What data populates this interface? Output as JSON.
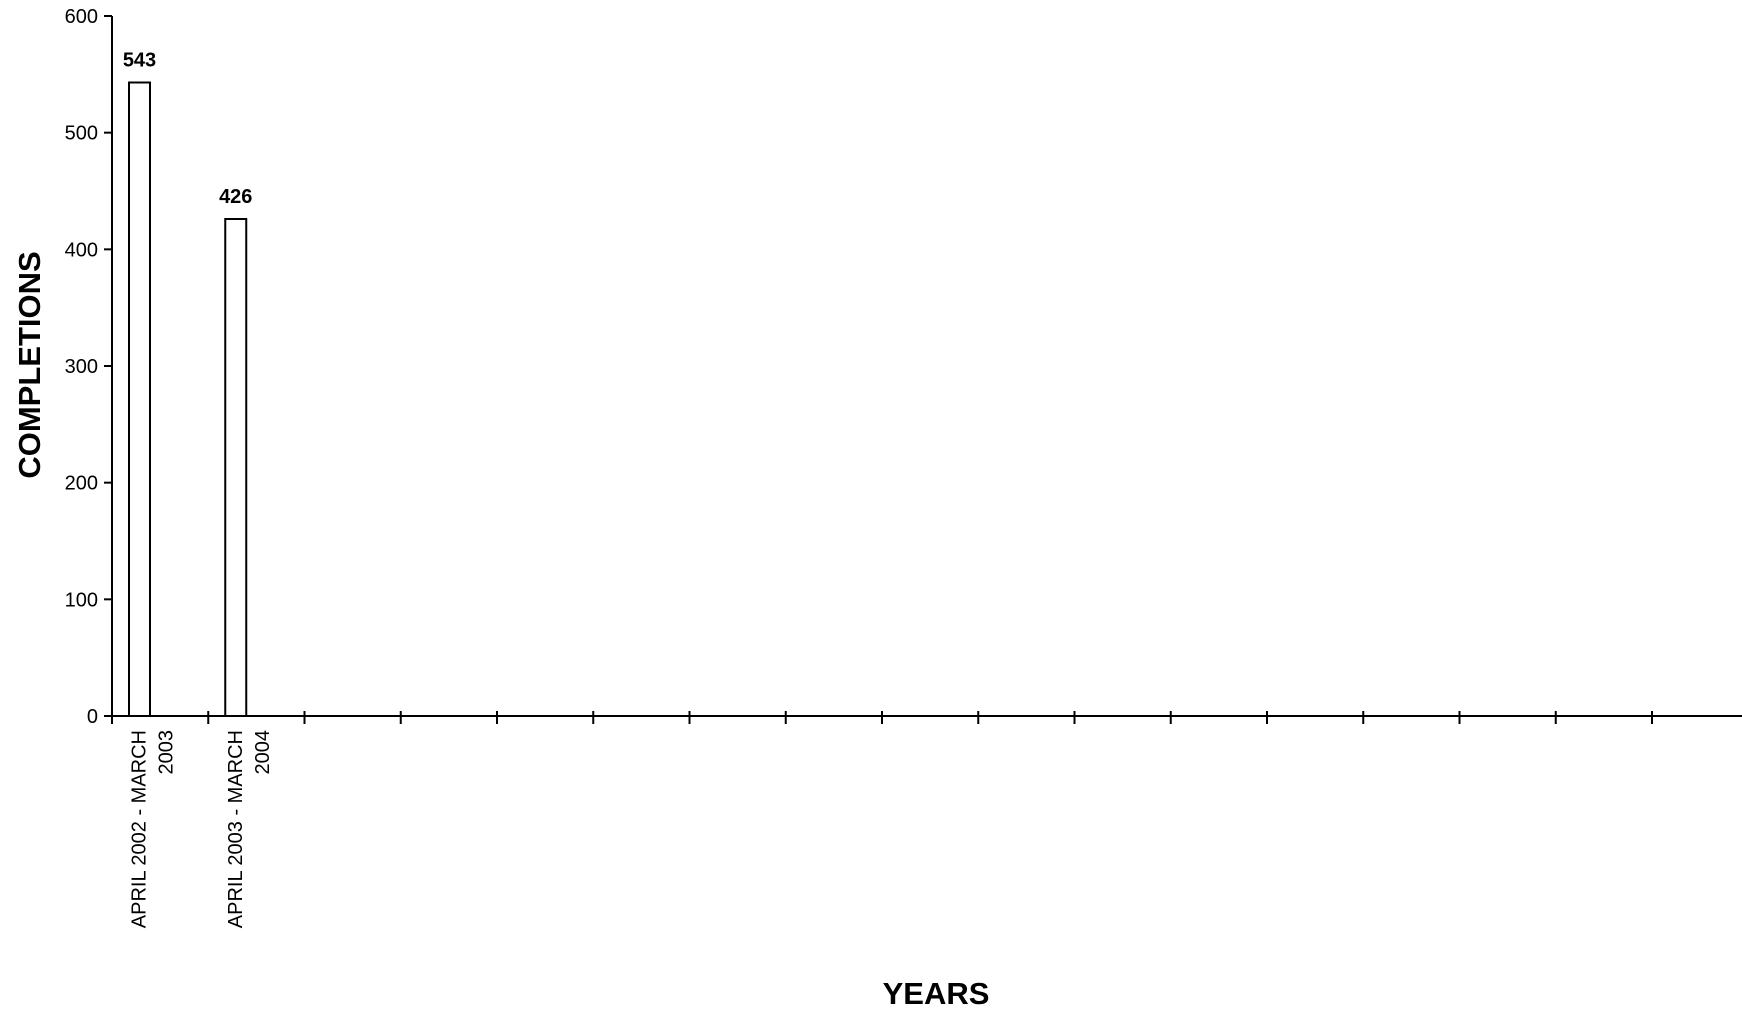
{
  "chart_data": {
    "type": "bar",
    "categories": [
      "APRIL 2002 - MARCH 2003",
      "APRIL 2003 - MARCH 2004"
    ],
    "category_label_lines": [
      [
        "APRIL 2002 - MARCH",
        "2003"
      ],
      [
        "APRIL 2003 - MARCH",
        "2004"
      ]
    ],
    "values": [
      543,
      426
    ],
    "data_labels": [
      "543",
      "426"
    ],
    "category_slots": 17,
    "xlabel": "YEARS",
    "ylabel": "COMPLETIONS",
    "ylim": [
      0,
      600
    ],
    "yticks": [
      0,
      100,
      200,
      300,
      400,
      500,
      600
    ],
    "grid": false,
    "legend": "none",
    "colors": {
      "bar_fill": "#ffffff",
      "bar_stroke": "#000000",
      "axis": "#000000",
      "text": "#000000"
    }
  }
}
